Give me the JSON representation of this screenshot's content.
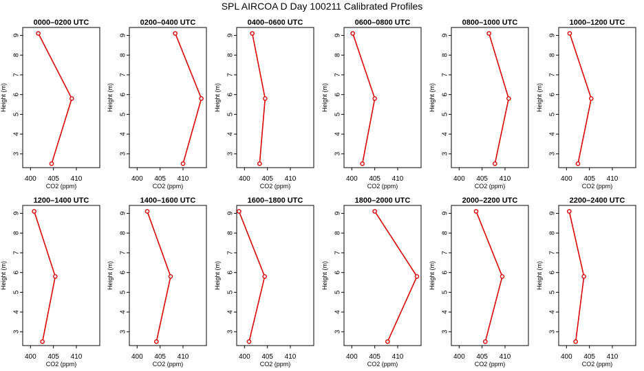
{
  "title": "SPL AIRCOA D  Day 100211  Calibrated Profiles",
  "colors": {
    "series": "#dd0000",
    "axis": "#000000",
    "background": "#ffffff"
  },
  "chart_data": [
    {
      "type": "line",
      "title": "0000–0200 UTC",
      "xlabel": "CO2 (ppm)",
      "ylabel": "Height (m)",
      "xlim": [
        398.3,
        415.1
      ],
      "ylim": [
        2.3,
        9.4
      ],
      "xticks": [
        400,
        405,
        410
      ],
      "yticks": [
        3,
        4,
        5,
        6,
        7,
        8,
        9
      ],
      "points": [
        {
          "x": 401.7,
          "y": 9.1
        },
        {
          "x": 409.0,
          "y": 5.8
        },
        {
          "x": 404.6,
          "y": 2.5
        }
      ]
    },
    {
      "type": "line",
      "title": "0200–0400 UTC",
      "xlabel": "CO2 (ppm)",
      "ylabel": "Height (m)",
      "xlim": [
        398.3,
        415.1
      ],
      "ylim": [
        2.3,
        9.4
      ],
      "xticks": [
        400,
        405,
        410
      ],
      "yticks": [
        3,
        4,
        5,
        6,
        7,
        8,
        9
      ],
      "points": [
        {
          "x": 408.3,
          "y": 9.1
        },
        {
          "x": 414.0,
          "y": 5.8
        },
        {
          "x": 410.0,
          "y": 2.5
        }
      ]
    },
    {
      "type": "line",
      "title": "0400–0600 UTC",
      "xlabel": "CO2 (ppm)",
      "ylabel": "Height (m)",
      "xlim": [
        398.3,
        415.1
      ],
      "ylim": [
        2.3,
        9.4
      ],
      "xticks": [
        400,
        405,
        410
      ],
      "yticks": [
        3,
        4,
        5,
        6,
        7,
        8,
        9
      ],
      "points": [
        {
          "x": 401.7,
          "y": 9.1
        },
        {
          "x": 404.5,
          "y": 5.8
        },
        {
          "x": 403.3,
          "y": 2.5
        }
      ]
    },
    {
      "type": "line",
      "title": "0600–0800 UTC",
      "xlabel": "CO2 (ppm)",
      "ylabel": "Height (m)",
      "xlim": [
        398.3,
        415.1
      ],
      "ylim": [
        2.3,
        9.4
      ],
      "xticks": [
        400,
        405,
        410
      ],
      "yticks": [
        3,
        4,
        5,
        6,
        7,
        8,
        9
      ],
      "points": [
        {
          "x": 400.2,
          "y": 9.1
        },
        {
          "x": 405.0,
          "y": 5.8
        },
        {
          "x": 402.3,
          "y": 2.5
        }
      ]
    },
    {
      "type": "line",
      "title": "0800–1000 UTC",
      "xlabel": "CO2 (ppm)",
      "ylabel": "Height (m)",
      "xlim": [
        398.3,
        415.1
      ],
      "ylim": [
        2.3,
        9.4
      ],
      "xticks": [
        400,
        405,
        410
      ],
      "yticks": [
        3,
        4,
        5,
        6,
        7,
        8,
        9
      ],
      "points": [
        {
          "x": 406.5,
          "y": 9.1
        },
        {
          "x": 410.8,
          "y": 5.8
        },
        {
          "x": 407.8,
          "y": 2.5
        }
      ]
    },
    {
      "type": "line",
      "title": "1000–1200 UTC",
      "xlabel": "CO2 (ppm)",
      "ylabel": "Height (m)",
      "xlim": [
        398.3,
        415.1
      ],
      "ylim": [
        2.3,
        9.4
      ],
      "xticks": [
        400,
        405,
        410
      ],
      "yticks": [
        3,
        4,
        5,
        6,
        7,
        8,
        9
      ],
      "points": [
        {
          "x": 400.7,
          "y": 9.1
        },
        {
          "x": 405.4,
          "y": 5.8
        },
        {
          "x": 402.5,
          "y": 2.5
        }
      ]
    },
    {
      "type": "line",
      "title": "1200–1400 UTC",
      "xlabel": "CO2 (ppm)",
      "ylabel": "Height (m)",
      "xlim": [
        398.3,
        415.1
      ],
      "ylim": [
        2.3,
        9.4
      ],
      "xticks": [
        400,
        405,
        410
      ],
      "yticks": [
        3,
        4,
        5,
        6,
        7,
        8,
        9
      ],
      "points": [
        {
          "x": 400.8,
          "y": 9.1
        },
        {
          "x": 405.4,
          "y": 5.8
        },
        {
          "x": 402.6,
          "y": 2.5
        }
      ]
    },
    {
      "type": "line",
      "title": "1400–1600 UTC",
      "xlabel": "CO2 (ppm)",
      "ylabel": "Height (m)",
      "xlim": [
        398.3,
        415.1
      ],
      "ylim": [
        2.3,
        9.4
      ],
      "xticks": [
        400,
        405,
        410
      ],
      "yticks": [
        3,
        4,
        5,
        6,
        7,
        8,
        9
      ],
      "points": [
        {
          "x": 402.2,
          "y": 9.1
        },
        {
          "x": 407.3,
          "y": 5.8
        },
        {
          "x": 404.2,
          "y": 2.5
        }
      ]
    },
    {
      "type": "line",
      "title": "1600–1800 UTC",
      "xlabel": "CO2 (ppm)",
      "ylabel": "Height (m)",
      "xlim": [
        398.3,
        415.1
      ],
      "ylim": [
        2.3,
        9.4
      ],
      "xticks": [
        400,
        405,
        410
      ],
      "yticks": [
        3,
        4,
        5,
        6,
        7,
        8,
        9
      ],
      "points": [
        {
          "x": 398.8,
          "y": 9.1
        },
        {
          "x": 404.4,
          "y": 5.8
        },
        {
          "x": 401.0,
          "y": 2.5
        }
      ]
    },
    {
      "type": "line",
      "title": "1800–2000 UTC",
      "xlabel": "CO2 (ppm)",
      "ylabel": "Height (m)",
      "xlim": [
        398.3,
        415.1
      ],
      "ylim": [
        2.3,
        9.4
      ],
      "xticks": [
        400,
        405,
        410
      ],
      "yticks": [
        3,
        4,
        5,
        6,
        7,
        8,
        9
      ],
      "points": [
        {
          "x": 405.0,
          "y": 9.1
        },
        {
          "x": 414.2,
          "y": 5.8
        },
        {
          "x": 407.8,
          "y": 2.5
        }
      ]
    },
    {
      "type": "line",
      "title": "2000–2200 UTC",
      "xlabel": "CO2 (ppm)",
      "ylabel": "Height (m)",
      "xlim": [
        398.3,
        415.1
      ],
      "ylim": [
        2.3,
        9.4
      ],
      "xticks": [
        400,
        405,
        410
      ],
      "yticks": [
        3,
        4,
        5,
        6,
        7,
        8,
        9
      ],
      "points": [
        {
          "x": 403.7,
          "y": 9.1
        },
        {
          "x": 409.4,
          "y": 5.8
        },
        {
          "x": 405.7,
          "y": 2.5
        }
      ]
    },
    {
      "type": "line",
      "title": "2200–2400 UTC",
      "xlabel": "CO2 (ppm)",
      "ylabel": "Height (m)",
      "xlim": [
        398.3,
        415.1
      ],
      "ylim": [
        2.3,
        9.4
      ],
      "xticks": [
        400,
        405,
        410
      ],
      "yticks": [
        3,
        4,
        5,
        6,
        7,
        8,
        9
      ],
      "points": [
        {
          "x": 400.6,
          "y": 9.1
        },
        {
          "x": 403.8,
          "y": 5.8
        },
        {
          "x": 402.0,
          "y": 2.5
        }
      ]
    }
  ]
}
